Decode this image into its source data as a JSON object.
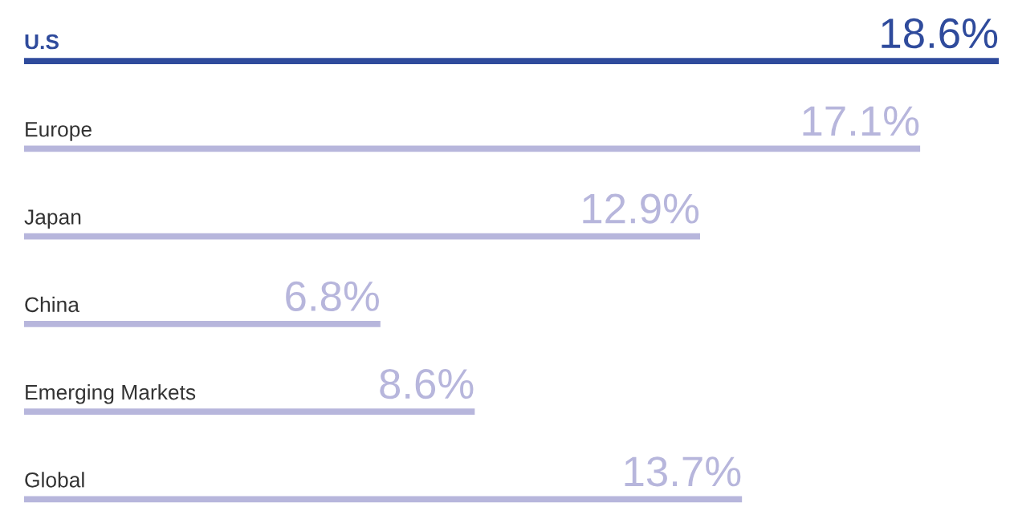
{
  "chart_data": {
    "type": "bar",
    "orientation": "horizontal",
    "categories": [
      "U.S",
      "Europe",
      "Japan",
      "China",
      "Emerging Markets",
      "Global"
    ],
    "values": [
      18.6,
      17.1,
      12.9,
      6.8,
      8.6,
      13.7
    ],
    "colors": [
      "#2f4b9c",
      "#b7b6dc",
      "#b7b6dc",
      "#b7b6dc",
      "#b7b6dc",
      "#b7b6dc"
    ],
    "value_labels": [
      "18.6%",
      "17.1%",
      "12.9%",
      "6.8%",
      "8.6%",
      "13.7%"
    ],
    "xlim": [
      0,
      18.6
    ]
  }
}
